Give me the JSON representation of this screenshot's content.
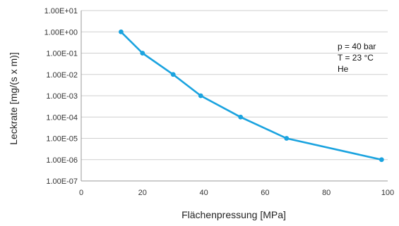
{
  "chart_data": {
    "type": "line",
    "xlabel": "Flächenpressung [MPa]",
    "ylabel": "Leckrate [mg/(s x m)]",
    "xlim": [
      0,
      100
    ],
    "ylim": [
      1e-07,
      10
    ],
    "y_scale": "log",
    "grid": "horizontal",
    "x_ticks": [
      "0",
      "20",
      "40",
      "60",
      "80",
      "100"
    ],
    "y_ticks": [
      "1.00E+01",
      "1.00E+00",
      "1.00E-01",
      "1.00E-02",
      "1.00E-03",
      "1.00E-04",
      "1.00E-05",
      "1.00E-06",
      "1.00E-07"
    ],
    "annotations": [
      "p = 40 bar",
      "T = 23 °C",
      "He"
    ],
    "series": [
      {
        "color": "#1aa3df",
        "x": [
          13,
          20,
          30,
          39,
          52,
          67,
          98
        ],
        "y": [
          1.0,
          0.1,
          0.01,
          0.001,
          0.0001,
          1e-05,
          1e-06
        ]
      }
    ]
  }
}
